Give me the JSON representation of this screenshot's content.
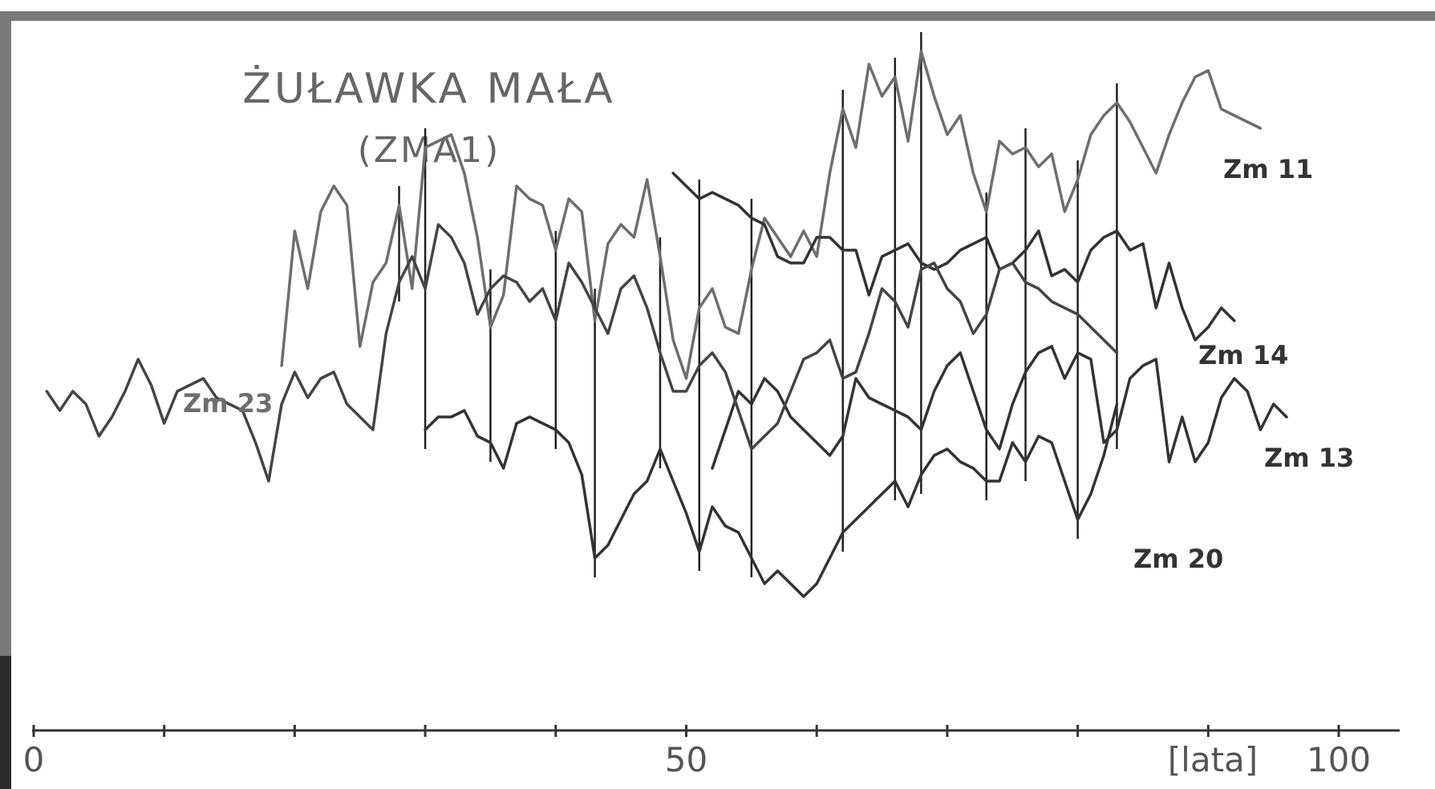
{
  "chart_data": {
    "type": "line",
    "title": "ŻUŁAWKA MAŁA",
    "subtitle": "(ZMA1)",
    "xlabel": "[lata]",
    "ylabel": "",
    "xlim": [
      0,
      105
    ],
    "x_ticks": [
      0,
      10,
      20,
      30,
      40,
      50,
      60,
      70,
      80,
      90,
      100
    ],
    "x_tick_labels": [
      {
        "x": 0,
        "label": "0"
      },
      {
        "x": 50,
        "label": "50"
      },
      {
        "x": 100,
        "label": "100"
      }
    ],
    "grid": false,
    "legend": "labels at line ends",
    "marker_years": [
      28,
      30,
      35,
      40,
      43,
      48,
      51,
      55,
      62,
      66,
      68,
      73,
      76,
      80,
      83
    ],
    "series": [
      {
        "name": "Zm 23",
        "color": "#6e6e6e",
        "x": [
          19,
          20,
          21,
          22,
          23,
          24,
          25,
          26,
          27,
          28,
          29,
          30,
          31,
          32,
          33,
          34,
          35,
          36,
          37,
          38,
          39,
          40,
          41,
          42,
          43,
          44,
          45,
          46,
          47,
          48,
          49,
          50,
          51,
          52,
          53,
          54,
          55,
          56,
          57,
          58,
          59,
          60,
          61,
          62,
          63,
          64,
          65,
          66,
          67,
          68,
          69,
          70,
          71,
          72,
          73,
          74,
          75,
          76,
          77,
          78,
          79,
          80,
          81,
          82,
          83,
          84,
          85,
          86,
          87,
          88,
          89,
          90,
          91,
          92,
          93,
          94
        ],
        "values": [
          48,
          69,
          60,
          72,
          76,
          73,
          51,
          61,
          64,
          73,
          60,
          82,
          83,
          84,
          78,
          68,
          54,
          59,
          76,
          74,
          73,
          66,
          74,
          72,
          55,
          67,
          70,
          68,
          77,
          65,
          52,
          46,
          57,
          60,
          54,
          53,
          63,
          71,
          68,
          65,
          69,
          65,
          78,
          88,
          82,
          95,
          90,
          93,
          83,
          97,
          90,
          84,
          87,
          78,
          72,
          83,
          81,
          82,
          79,
          81,
          72,
          77,
          84,
          87,
          89,
          86,
          82,
          78,
          84,
          89,
          93,
          94,
          88,
          87,
          86,
          85
        ]
      },
      {
        "name": "Zm 14",
        "color": "#333333",
        "x": [
          49,
          50,
          51,
          52,
          53,
          54,
          55,
          56,
          57,
          58,
          59,
          60,
          61,
          62,
          63,
          64,
          65,
          66,
          67,
          68,
          69,
          70,
          71,
          72,
          73,
          74,
          75,
          76,
          77,
          78,
          79,
          80,
          81,
          82,
          83,
          84,
          85,
          86,
          87,
          88,
          89,
          90,
          91,
          92
        ],
        "values": [
          78,
          76,
          74,
          75,
          74,
          73,
          71,
          70,
          65,
          64,
          64,
          68,
          68,
          66,
          66,
          59,
          65,
          66,
          67,
          64,
          63,
          64,
          66,
          67,
          68,
          63,
          64,
          66,
          69,
          62,
          63,
          61,
          66,
          68,
          69,
          66,
          67,
          57,
          64,
          57,
          52,
          54,
          57,
          55
        ]
      },
      {
        "name": "Zm 13",
        "color": "#333333",
        "x": [
          52,
          53,
          54,
          55,
          56,
          57,
          58,
          59,
          60,
          61,
          62,
          63,
          64,
          65,
          66,
          67,
          68,
          69,
          70,
          71,
          72,
          73,
          74,
          75,
          76,
          77,
          78,
          79,
          80,
          81,
          82,
          83,
          84,
          85,
          86,
          87,
          88,
          89,
          90,
          91,
          92,
          93,
          94,
          95,
          96
        ],
        "values": [
          32,
          38,
          44,
          42,
          46,
          44,
          40,
          38,
          36,
          34,
          37,
          46,
          43,
          42,
          41,
          40,
          38,
          44,
          48,
          50,
          44,
          38,
          35,
          42,
          47,
          50,
          51,
          46,
          50,
          49,
          36,
          38,
          46,
          48,
          49,
          33,
          40,
          33,
          36,
          43,
          46,
          44,
          38,
          42,
          40
        ]
      },
      {
        "name": "Zm 20",
        "color": "#333333",
        "x": [
          30,
          31,
          32,
          33,
          34,
          35,
          36,
          37,
          38,
          39,
          40,
          41,
          42,
          43,
          44,
          45,
          46,
          47,
          48,
          49,
          50,
          51,
          52,
          53,
          54,
          55,
          56,
          57,
          58,
          59,
          60,
          61,
          62,
          63,
          64,
          65,
          66,
          67,
          68,
          69,
          70,
          71,
          72,
          73,
          74,
          75,
          76,
          77,
          78,
          79,
          80,
          81,
          82,
          83
        ],
        "values": [
          38,
          40,
          40,
          41,
          37,
          36,
          32,
          39,
          40,
          39,
          38,
          36,
          31,
          18,
          20,
          24,
          28,
          30,
          35,
          30,
          25,
          19,
          26,
          23,
          22,
          18,
          14,
          16,
          14,
          12,
          14,
          18,
          22,
          24,
          26,
          28,
          30,
          26,
          31,
          34,
          35,
          33,
          32,
          30,
          30,
          36,
          33,
          37,
          36,
          30,
          24,
          28,
          34,
          42
        ]
      },
      {
        "name": "",
        "color": "#444444",
        "x": [
          1,
          2,
          3,
          4,
          5,
          6,
          7,
          8,
          9,
          10,
          11,
          12,
          13,
          14,
          15,
          16,
          17,
          18,
          19,
          20,
          21,
          22,
          23,
          24,
          25,
          26,
          27,
          28,
          29,
          30,
          31,
          32,
          33,
          34,
          35,
          36,
          37,
          38,
          39,
          40,
          41,
          42,
          43,
          44,
          45,
          46,
          47,
          48,
          49,
          50,
          51,
          52,
          53,
          54,
          55,
          56,
          57,
          58,
          59,
          60,
          61,
          62,
          63,
          64,
          65,
          66,
          67,
          68,
          69,
          70,
          71,
          72,
          73,
          74,
          75,
          76,
          77,
          78,
          79,
          80,
          81,
          82,
          83
        ],
        "values": [
          44,
          41,
          44,
          42,
          37,
          40,
          44,
          49,
          45,
          39,
          44,
          45,
          46,
          43,
          42,
          41,
          36,
          30,
          42,
          47,
          43,
          46,
          47,
          42,
          40,
          38,
          53,
          61,
          65,
          60,
          70,
          68,
          64,
          56,
          60,
          62,
          61,
          58,
          60,
          55,
          64,
          61,
          57,
          53,
          60,
          62,
          57,
          50,
          44,
          44,
          48,
          50,
          47,
          41,
          35,
          37,
          39,
          44,
          49,
          50,
          52,
          46,
          47,
          53,
          60,
          58,
          54,
          63,
          64,
          60,
          58,
          53,
          56,
          63,
          64,
          61,
          60,
          58,
          57,
          56,
          54,
          52,
          50
        ]
      }
    ]
  }
}
